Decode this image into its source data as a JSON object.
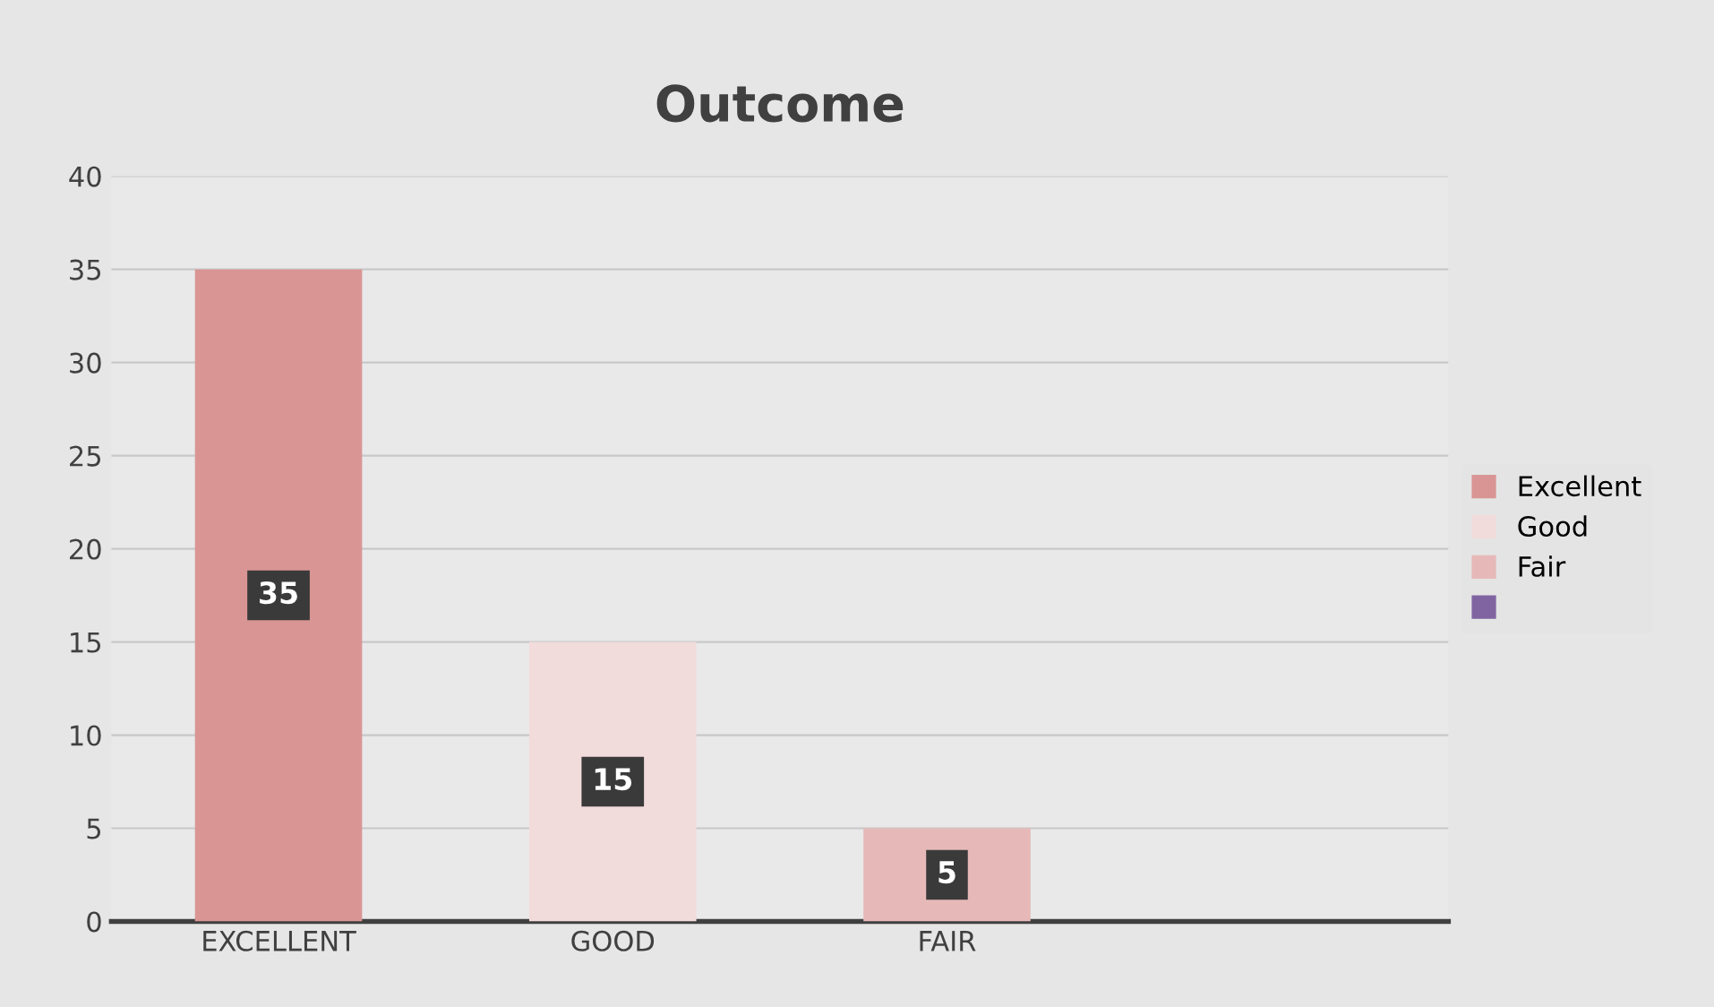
{
  "chart_data": {
    "type": "bar",
    "title": "Outcome",
    "categories": [
      "EXCELLENT",
      "GOOD",
      "FAIR",
      null
    ],
    "series": [
      {
        "name": "Excellent",
        "color": "#d99594",
        "values": [
          35,
          null,
          null,
          null
        ]
      },
      {
        "name": "Good",
        "color": "#f2dcdb",
        "values": [
          null,
          15,
          null,
          null
        ]
      },
      {
        "name": "Fair",
        "color": "#e6b9b8",
        "values": [
          null,
          null,
          5,
          null
        ]
      },
      {
        "color": "#8064a2",
        "values": [
          null,
          null,
          null,
          null
        ]
      }
    ],
    "ylim": [
      0,
      40
    ],
    "yticks": [
      0,
      5,
      10,
      15,
      20,
      25,
      30,
      35,
      40
    ],
    "grid": "y",
    "legend": "right",
    "data_labels": true
  }
}
